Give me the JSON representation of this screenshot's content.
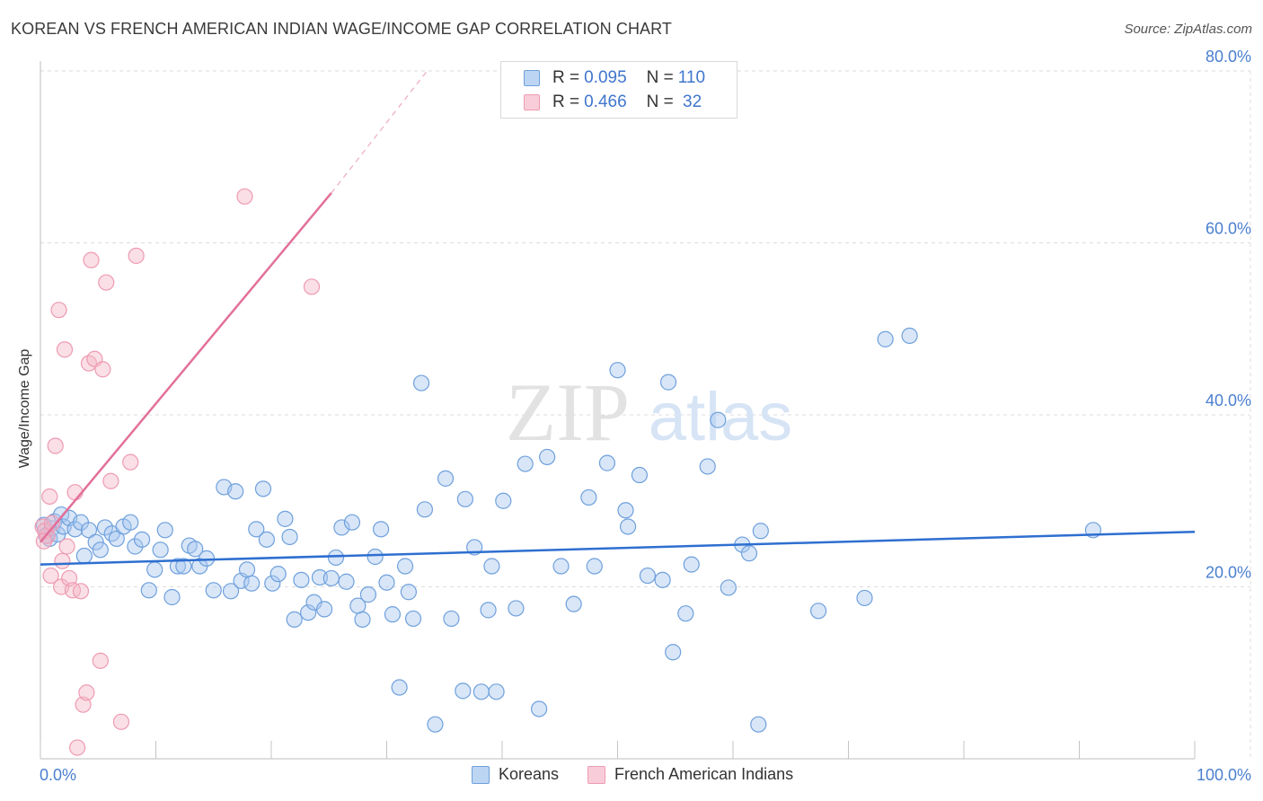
{
  "header": {
    "title": "KOREAN VS FRENCH AMERICAN INDIAN WAGE/INCOME GAP CORRELATION CHART",
    "source": "Source: ZipAtlas.com"
  },
  "watermark": {
    "zip": "ZIP",
    "atlas": "atlas"
  },
  "legend": {
    "rows": [
      {
        "r_label": "R = ",
        "r_value": "0.095",
        "n_label": "N = ",
        "n_value": "110",
        "color": "#a8c8f0"
      },
      {
        "r_label": "R = ",
        "r_value": "0.466",
        "n_label": "N = ",
        "n_value": " 32",
        "color": "#f5b8c8"
      }
    ]
  },
  "chart_data": {
    "type": "scatter",
    "title": "KOREAN VS FRENCH AMERICAN INDIAN WAGE/INCOME GAP CORRELATION CHART",
    "xlabel": "",
    "ylabel": "Wage/Income Gap",
    "xlim": [
      0,
      100
    ],
    "ylim": [
      0,
      82
    ],
    "x_tick_labels": [
      "0.0%",
      "100.0%"
    ],
    "y_ticks": [
      20,
      40,
      60,
      80
    ],
    "y_tick_labels": [
      "20.0%",
      "40.0%",
      "60.0%",
      "80.0%"
    ],
    "grid": true,
    "legend_position": "bottom-center",
    "series": [
      {
        "name": "Koreans",
        "color": "#6fa0dc",
        "fill": "#a8c8f0",
        "trend": {
          "x": [
            0,
            100
          ],
          "y": [
            22.6,
            26.4
          ]
        },
        "points": [
          [
            0.3,
            27.2
          ],
          [
            0.5,
            26.0
          ],
          [
            0.8,
            25.6
          ],
          [
            1.0,
            26.8
          ],
          [
            1.2,
            27.6
          ],
          [
            1.5,
            26.1
          ],
          [
            1.8,
            28.4
          ],
          [
            2.0,
            27.0
          ],
          [
            2.5,
            28.0
          ],
          [
            3.0,
            26.7
          ],
          [
            3.5,
            27.5
          ],
          [
            3.8,
            23.6
          ],
          [
            4.2,
            26.6
          ],
          [
            4.8,
            25.2
          ],
          [
            5.2,
            24.3
          ],
          [
            5.6,
            26.9
          ],
          [
            6.2,
            26.2
          ],
          [
            6.6,
            25.6
          ],
          [
            7.2,
            27.0
          ],
          [
            7.8,
            27.5
          ],
          [
            8.2,
            24.7
          ],
          [
            8.8,
            25.5
          ],
          [
            9.4,
            19.6
          ],
          [
            9.9,
            22.0
          ],
          [
            10.4,
            24.3
          ],
          [
            10.8,
            26.6
          ],
          [
            11.4,
            18.8
          ],
          [
            11.9,
            22.4
          ],
          [
            12.4,
            22.4
          ],
          [
            12.9,
            24.8
          ],
          [
            13.4,
            24.4
          ],
          [
            13.8,
            22.4
          ],
          [
            14.4,
            23.3
          ],
          [
            15.0,
            19.6
          ],
          [
            15.9,
            31.6
          ],
          [
            16.5,
            19.5
          ],
          [
            16.9,
            31.1
          ],
          [
            17.4,
            20.7
          ],
          [
            17.9,
            22.0
          ],
          [
            18.3,
            20.4
          ],
          [
            18.7,
            26.7
          ],
          [
            19.3,
            31.4
          ],
          [
            19.6,
            25.5
          ],
          [
            20.1,
            20.4
          ],
          [
            20.6,
            21.5
          ],
          [
            21.2,
            27.9
          ],
          [
            21.6,
            25.8
          ],
          [
            22.0,
            16.2
          ],
          [
            22.6,
            20.8
          ],
          [
            23.2,
            17.0
          ],
          [
            23.7,
            18.2
          ],
          [
            24.2,
            21.1
          ],
          [
            24.6,
            17.4
          ],
          [
            25.2,
            21.0
          ],
          [
            25.6,
            23.4
          ],
          [
            26.1,
            26.9
          ],
          [
            26.5,
            20.6
          ],
          [
            27.0,
            27.5
          ],
          [
            27.5,
            17.8
          ],
          [
            27.9,
            16.2
          ],
          [
            28.4,
            19.1
          ],
          [
            29.0,
            23.5
          ],
          [
            29.5,
            26.7
          ],
          [
            30.0,
            20.5
          ],
          [
            30.5,
            16.8
          ],
          [
            31.1,
            8.3
          ],
          [
            31.6,
            22.4
          ],
          [
            31.9,
            19.4
          ],
          [
            32.3,
            16.3
          ],
          [
            33.0,
            43.7
          ],
          [
            33.3,
            29.0
          ],
          [
            34.2,
            4.0
          ],
          [
            35.1,
            32.6
          ],
          [
            35.6,
            16.3
          ],
          [
            36.6,
            7.9
          ],
          [
            36.8,
            30.2
          ],
          [
            37.6,
            24.6
          ],
          [
            38.2,
            7.8
          ],
          [
            38.8,
            17.3
          ],
          [
            39.1,
            22.4
          ],
          [
            39.5,
            7.8
          ],
          [
            40.1,
            30.0
          ],
          [
            41.2,
            17.5
          ],
          [
            42.0,
            34.3
          ],
          [
            43.2,
            5.8
          ],
          [
            43.9,
            35.1
          ],
          [
            45.1,
            22.4
          ],
          [
            46.2,
            18.0
          ],
          [
            47.5,
            30.4
          ],
          [
            48.0,
            22.4
          ],
          [
            49.1,
            34.4
          ],
          [
            50.0,
            45.2
          ],
          [
            50.7,
            28.9
          ],
          [
            50.9,
            27.0
          ],
          [
            51.9,
            33.0
          ],
          [
            52.6,
            21.3
          ],
          [
            53.9,
            20.8
          ],
          [
            54.4,
            43.8
          ],
          [
            54.8,
            12.4
          ],
          [
            55.9,
            16.9
          ],
          [
            56.4,
            22.6
          ],
          [
            57.8,
            34.0
          ],
          [
            58.7,
            39.4
          ],
          [
            59.6,
            19.9
          ],
          [
            60.8,
            24.9
          ],
          [
            61.4,
            23.9
          ],
          [
            62.2,
            4.0
          ],
          [
            62.4,
            26.5
          ],
          [
            67.4,
            17.2
          ],
          [
            71.4,
            18.7
          ],
          [
            73.2,
            48.8
          ],
          [
            75.3,
            49.2
          ],
          [
            91.2,
            26.6
          ]
        ]
      },
      {
        "name": "French American Indians",
        "color": "#ee9ab2",
        "fill": "#f5b8c8",
        "trend": {
          "x": [
            0,
            25.2
          ],
          "y": [
            25.2,
            65.8
          ]
        },
        "trend_dashed": {
          "x": [
            25.2,
            33.5
          ],
          "y": [
            65.8,
            80.0
          ]
        },
        "points": [
          [
            0.2,
            27.0
          ],
          [
            0.6,
            25.9
          ],
          [
            0.8,
            30.5
          ],
          [
            0.9,
            21.3
          ],
          [
            1.3,
            36.4
          ],
          [
            1.6,
            52.2
          ],
          [
            1.8,
            20.0
          ],
          [
            1.9,
            23.0
          ],
          [
            2.1,
            47.6
          ],
          [
            2.3,
            24.7
          ],
          [
            2.5,
            21.0
          ],
          [
            2.8,
            19.6
          ],
          [
            3.0,
            31.0
          ],
          [
            3.2,
            1.3
          ],
          [
            3.5,
            19.5
          ],
          [
            3.7,
            6.3
          ],
          [
            4.0,
            7.7
          ],
          [
            4.2,
            46.0
          ],
          [
            4.4,
            58.0
          ],
          [
            4.7,
            46.5
          ],
          [
            5.2,
            11.4
          ],
          [
            5.4,
            45.3
          ],
          [
            5.7,
            55.4
          ],
          [
            6.1,
            32.3
          ],
          [
            7.0,
            4.3
          ],
          [
            7.8,
            34.5
          ],
          [
            8.3,
            58.5
          ],
          [
            17.7,
            65.4
          ],
          [
            23.5,
            54.9
          ],
          [
            0.4,
            26.5
          ],
          [
            1.0,
            27.4
          ],
          [
            0.3,
            25.3
          ]
        ]
      }
    ]
  }
}
